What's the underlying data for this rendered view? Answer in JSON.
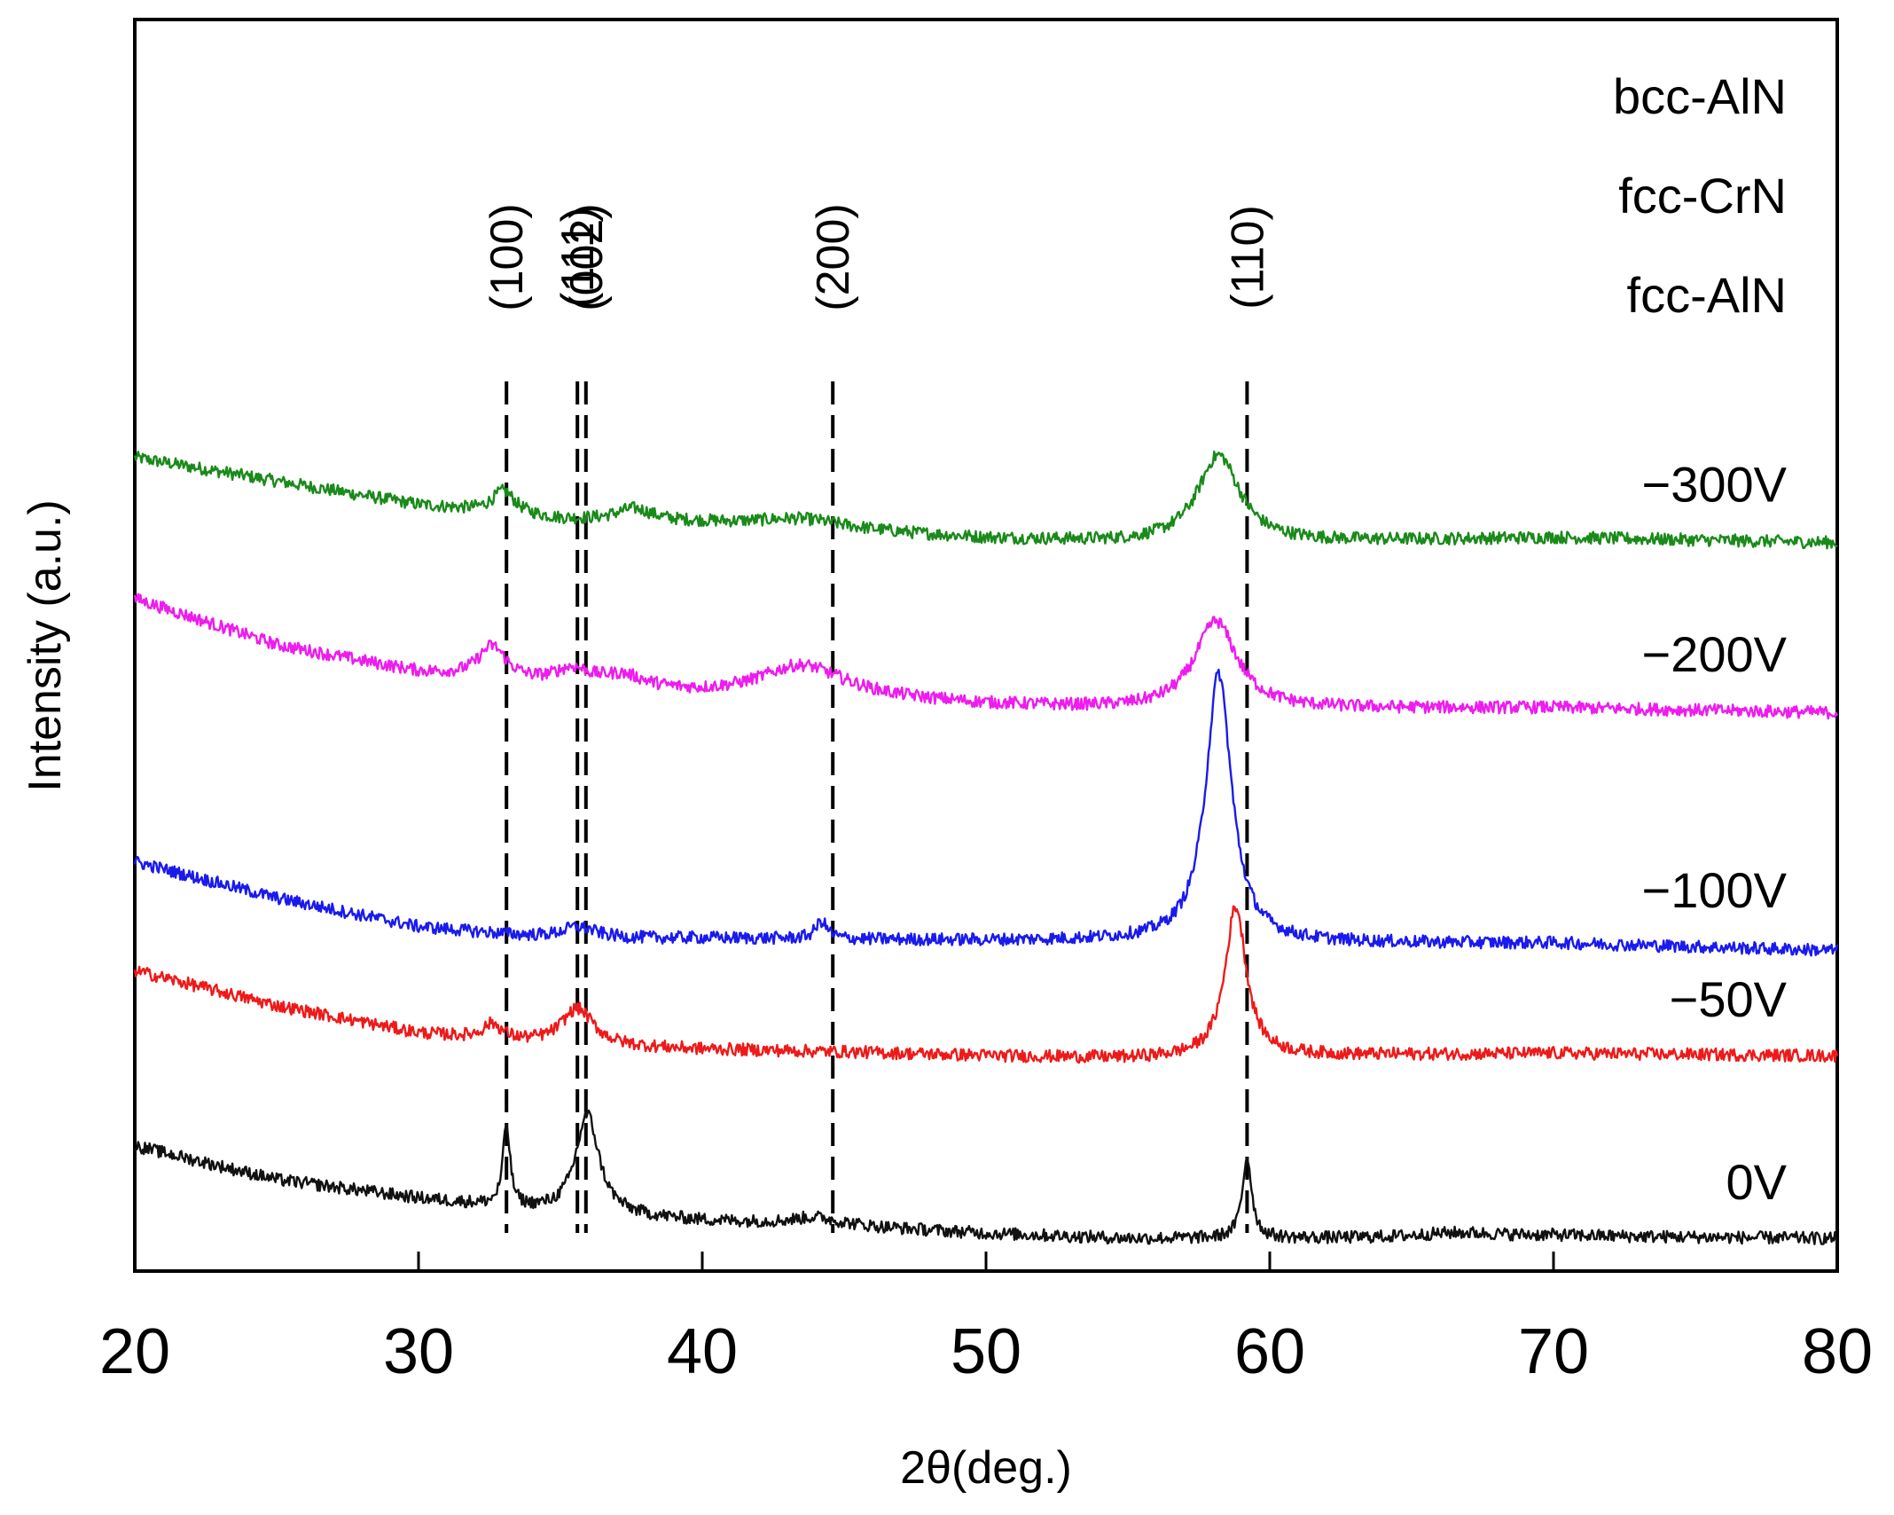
{
  "chart_data": {
    "type": "line",
    "title": "",
    "xlabel": "2θ(deg.)",
    "ylabel": "Intensity (a.u.)",
    "xlim": [
      20,
      80
    ],
    "ylim": [
      0,
      1
    ],
    "xticks": [
      "20",
      "30",
      "40",
      "50",
      "60",
      "70",
      "80"
    ],
    "yticks": [],
    "grid": false,
    "legend_position": "top-right",
    "phase_legend": [
      "bcc-AlN",
      "fcc-CrN",
      "fcc-AlN"
    ],
    "reference_lines": [
      {
        "x": 33.1,
        "label": "(100)"
      },
      {
        "x": 35.6,
        "label": "(111)"
      },
      {
        "x": 35.9,
        "label": "(002)"
      },
      {
        "x": 44.6,
        "label": "(200)"
      },
      {
        "x": 59.2,
        "label": "(110)"
      }
    ],
    "series": [
      {
        "name": "−300V",
        "color": "#1a8a1a",
        "baseline": [
          [
            20,
            0.65
          ],
          [
            25,
            0.631
          ],
          [
            30,
            0.612
          ],
          [
            35,
            0.6
          ],
          [
            40,
            0.597
          ],
          [
            45,
            0.591
          ],
          [
            50,
            0.585
          ],
          [
            55,
            0.582
          ],
          [
            60,
            0.582
          ],
          [
            70,
            0.586
          ],
          [
            80,
            0.582
          ]
        ],
        "peaks": [
          [
            33.0,
            0.018,
            0.5
          ],
          [
            37.6,
            0.01,
            0.8
          ],
          [
            43.5,
            0.008,
            2.0
          ],
          [
            58.2,
            0.07,
            0.9
          ]
        ]
      },
      {
        "name": "−200V",
        "color": "#ee1cee",
        "baseline": [
          [
            20,
            0.537
          ],
          [
            25,
            0.5
          ],
          [
            30,
            0.478
          ],
          [
            35,
            0.466
          ],
          [
            40,
            0.46
          ],
          [
            45,
            0.458
          ],
          [
            50,
            0.452
          ],
          [
            55,
            0.449
          ],
          [
            60,
            0.449
          ],
          [
            70,
            0.45
          ],
          [
            80,
            0.446
          ]
        ],
        "peaks": [
          [
            32.6,
            0.026,
            0.6
          ],
          [
            35.4,
            0.013,
            0.8
          ],
          [
            37.2,
            0.01,
            1.0
          ],
          [
            43.5,
            0.025,
            1.8
          ],
          [
            58.1,
            0.07,
            0.9
          ]
        ]
      },
      {
        "name": "−100V",
        "color": "#1a1aee",
        "baseline": [
          [
            20,
            0.327
          ],
          [
            25,
            0.298
          ],
          [
            30,
            0.275
          ],
          [
            35,
            0.265
          ],
          [
            40,
            0.266
          ],
          [
            45,
            0.265
          ],
          [
            50,
            0.264
          ],
          [
            55,
            0.264
          ],
          [
            60,
            0.262
          ],
          [
            70,
            0.262
          ],
          [
            80,
            0.256
          ]
        ],
        "peaks": [
          [
            35.6,
            0.01,
            0.8
          ],
          [
            44.2,
            0.014,
            0.25
          ],
          [
            58.2,
            0.215,
            0.55
          ]
        ]
      },
      {
        "name": "−50V",
        "color": "#ee1a1a",
        "baseline": [
          [
            20,
            0.24
          ],
          [
            25,
            0.212
          ],
          [
            30,
            0.19
          ],
          [
            35,
            0.18
          ],
          [
            40,
            0.177
          ],
          [
            45,
            0.175
          ],
          [
            50,
            0.172
          ],
          [
            55,
            0.17
          ],
          [
            60,
            0.172
          ],
          [
            70,
            0.174
          ],
          [
            80,
            0.172
          ]
        ],
        "peaks": [
          [
            32.6,
            0.012,
            0.4
          ],
          [
            35.6,
            0.03,
            0.7
          ],
          [
            58.8,
            0.12,
            0.45
          ]
        ]
      },
      {
        "name": "0V",
        "color": "#111111",
        "baseline": [
          [
            20,
            0.1
          ],
          [
            25,
            0.073
          ],
          [
            30,
            0.058
          ],
          [
            35,
            0.046
          ],
          [
            40,
            0.04
          ],
          [
            45,
            0.036
          ],
          [
            50,
            0.03
          ],
          [
            55,
            0.026
          ],
          [
            60,
            0.026
          ],
          [
            65,
            0.026
          ],
          [
            70,
            0.028
          ],
          [
            80,
            0.026
          ]
        ],
        "peaks": [
          [
            33.1,
            0.065,
            0.15
          ],
          [
            35.95,
            0.08,
            0.5
          ],
          [
            44.0,
            0.006,
            1.0
          ],
          [
            59.2,
            0.065,
            0.2
          ],
          [
            66.5,
            0.004,
            2.0
          ]
        ]
      }
    ]
  }
}
